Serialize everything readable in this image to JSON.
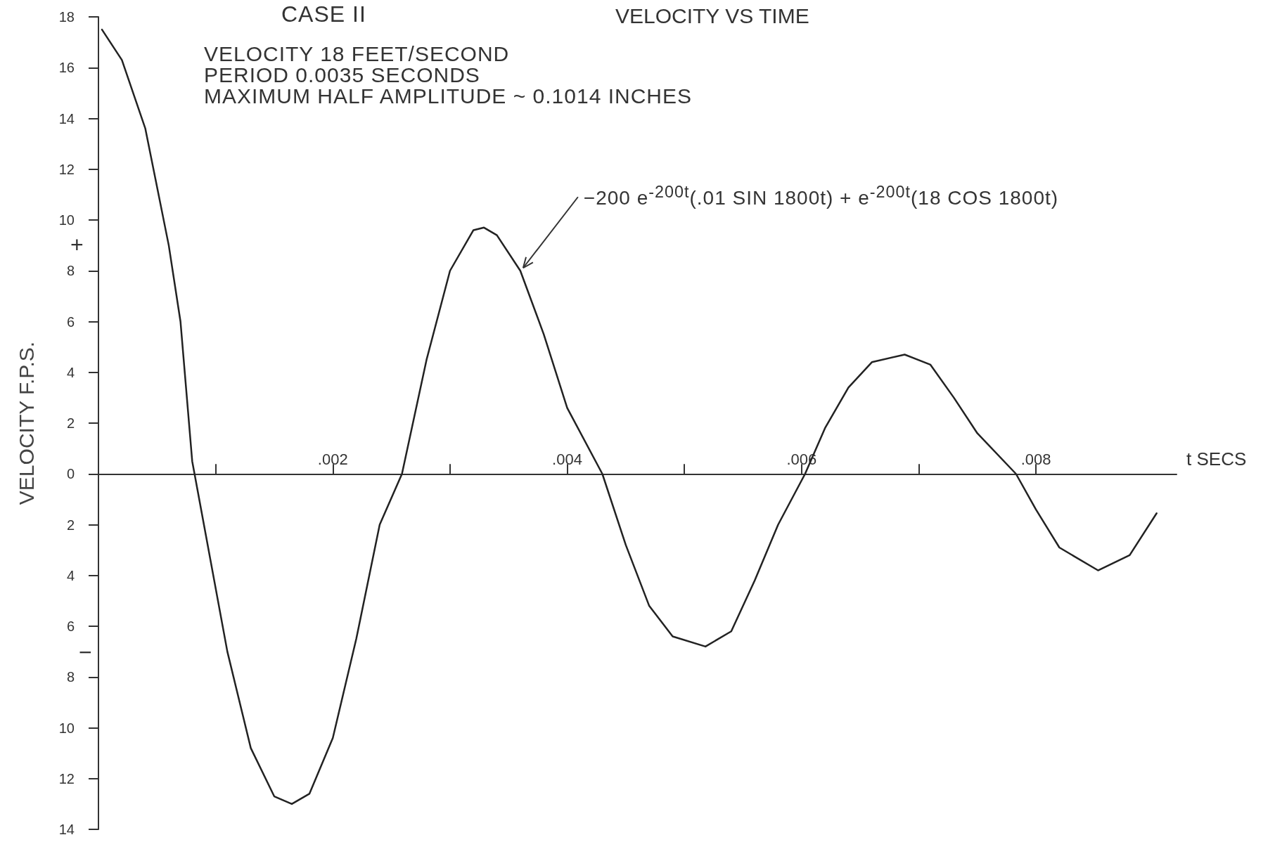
{
  "chart_data": {
    "type": "line",
    "title": "VELOCITY VS TIME",
    "subtitle": "VELOCITY 18 FEET/SECOND\nPERIOD 0.0035 SECONDS\nMAXIMUM HALF AMPLITUDE ~ 0.1014 INCHES",
    "xlabel": "t SECS",
    "ylabel": "VELOCITY F.P.S.",
    "annotations": [
      "CASE II",
      "+",
      "−",
      {
        "text": "−200 e$^{-200t}$(.01 SIN 1800t) + e$^{-200t}$(18 COS 1800t)",
        "x": 0.0036,
        "y": 8
      }
    ],
    "x": [
      3e-05,
      0.0002,
      0.0004,
      0.0006,
      0.0007,
      0.0008,
      0.0009,
      0.0011,
      0.0013,
      0.0015,
      0.00165,
      0.0018,
      0.002,
      0.0022,
      0.0024,
      0.00259,
      0.0028,
      0.003,
      0.0032,
      0.00329,
      0.0034,
      0.0036,
      0.0038,
      0.004,
      0.0043,
      0.0045,
      0.0047,
      0.0049,
      0.00518,
      0.0054,
      0.0056,
      0.0058,
      0.00603,
      0.0062,
      0.0064,
      0.0066,
      0.00688,
      0.0071,
      0.0073,
      0.0075,
      0.00783,
      0.008,
      0.0082,
      0.00853,
      0.0088,
      0.00903
    ],
    "series": [
      {
        "color": "#222222",
        "values": [
          17.5,
          16.3,
          13.6,
          9.0,
          6.0,
          0.5,
          -2,
          -7,
          -10.8,
          -12.7,
          -13,
          -12.6,
          -10.4,
          -6.5,
          -2,
          0,
          4.5,
          8,
          9.6,
          9.7,
          9.4,
          8,
          5.5,
          2.6,
          0,
          -2.8,
          -5.2,
          -6.4,
          -6.8,
          -6.2,
          -4.2,
          -2,
          0,
          1.8,
          3.4,
          4.4,
          4.7,
          4.3,
          3,
          1.6,
          0,
          -1.4,
          -2.9,
          -3.8,
          -3.2,
          -1.55
        ]
      }
    ],
    "xlim": [
      0,
      0.0092
    ],
    "xticks": [
      {
        "value": 0.001,
        "label": null
      },
      {
        "value": 0.002,
        "label": ".002"
      },
      {
        "value": 0.003,
        "label": null
      },
      {
        "value": 0.004,
        "label": ".004"
      },
      {
        "value": 0.005,
        "label": null
      },
      {
        "value": 0.006,
        "label": ".006"
      },
      {
        "value": 0.007,
        "label": null
      },
      {
        "value": 0.008,
        "label": ".008"
      }
    ],
    "ylim": [
      -14,
      18
    ],
    "yticks": [
      {
        "value": -14,
        "label": "14"
      },
      {
        "value": -12,
        "label": "12"
      },
      {
        "value": -10,
        "label": "10"
      },
      {
        "value": -8,
        "label": "8"
      },
      {
        "value": -6,
        "label": "6"
      },
      {
        "value": -4,
        "label": "4"
      },
      {
        "value": -2,
        "label": "2"
      },
      0,
      2,
      4,
      6,
      8,
      10,
      12,
      14,
      16,
      18
    ],
    "marker": "none",
    "line_style": "solid"
  }
}
